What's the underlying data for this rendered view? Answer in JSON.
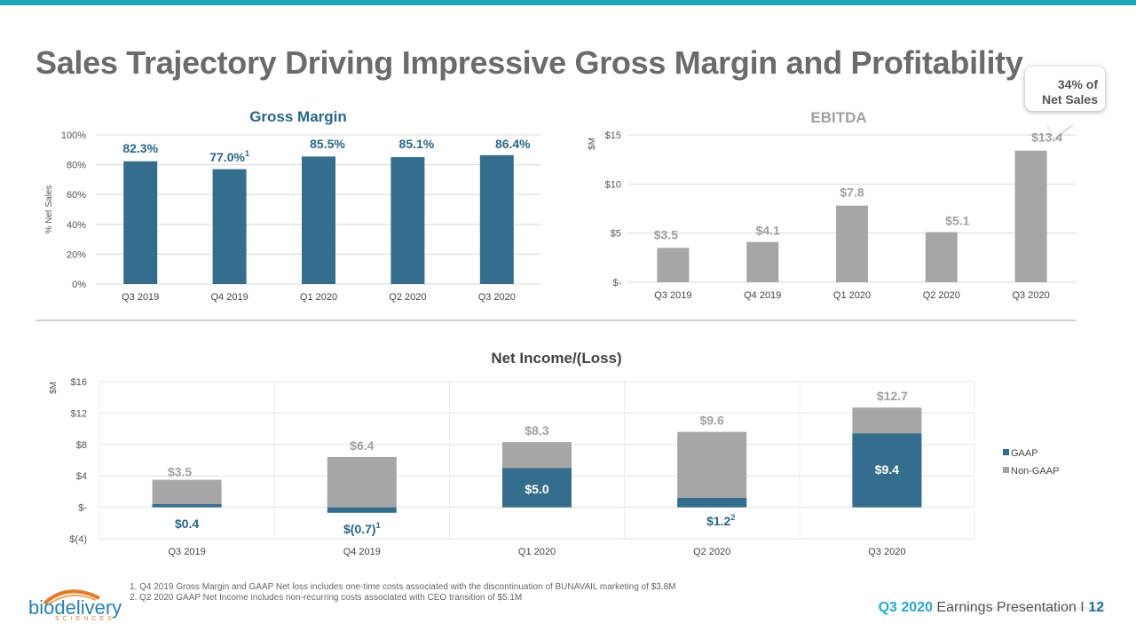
{
  "title": "Sales Trajectory Driving Impressive Gross Margin and Profitability",
  "callout": {
    "line1": "34% of",
    "line2": "Net Sales"
  },
  "colors": {
    "gaap": "#356e8c",
    "nongaap": "#a6a6a6",
    "accent": "#20a8b8",
    "gm_label": "#2a6688",
    "ebitda_label": "#a0a0a0"
  },
  "chart_data": [
    {
      "type": "bar",
      "title": "Gross Margin",
      "ylabel": "% Net Sales",
      "categories": [
        "Q3 2019",
        "Q4 2019",
        "Q1 2020",
        "Q2 2020",
        "Q3 2020"
      ],
      "values": [
        82.3,
        77.0,
        85.5,
        85.1,
        86.4
      ],
      "labels": [
        "82.3%",
        "77.0%",
        "85.5%",
        "85.1%",
        "86.4%"
      ],
      "label_superscripts": [
        "",
        "1",
        "",
        "",
        ""
      ],
      "yticks": [
        "0%",
        "20%",
        "40%",
        "60%",
        "80%",
        "100%"
      ],
      "ylim": [
        0,
        100
      ],
      "grid": true
    },
    {
      "type": "bar",
      "title": "EBITDA",
      "ylabel": "$M",
      "categories": [
        "Q3 2019",
        "Q4 2019",
        "Q1 2020",
        "Q2 2020",
        "Q3 2020"
      ],
      "values": [
        3.5,
        4.1,
        7.8,
        5.1,
        13.4
      ],
      "labels": [
        "$3.5",
        "$4.1",
        "$7.8",
        "$5.1",
        "$13.4"
      ],
      "yticks": [
        "$-",
        "$5",
        "$10",
        "$15"
      ],
      "ylim": [
        0,
        15
      ],
      "grid": true
    },
    {
      "type": "bar",
      "title": "Net Income/(Loss)",
      "ylabel": "$M",
      "categories": [
        "Q3 2019",
        "Q4 2019",
        "Q1 2020",
        "Q2 2020",
        "Q3 2020"
      ],
      "series": [
        {
          "name": "GAAP",
          "values": [
            0.4,
            -0.7,
            5.0,
            1.2,
            9.4
          ]
        },
        {
          "name": "Non-GAAP",
          "values": [
            3.5,
            6.4,
            8.3,
            9.6,
            12.7
          ]
        }
      ],
      "gaap_labels": [
        "$0.4",
        "$(0.7)",
        "$5.0",
        "$1.2",
        "$9.4"
      ],
      "gaap_superscripts": [
        "",
        "1",
        "",
        "2",
        ""
      ],
      "nongaap_labels": [
        "$3.5",
        "$6.4",
        "$8.3",
        "$9.6",
        "$12.7"
      ],
      "yticks": [
        "$(4)",
        "$-",
        "$4",
        "$8",
        "$12",
        "$16"
      ],
      "ylim": [
        -4,
        16
      ],
      "legend_position": "right",
      "grid": true
    }
  ],
  "footnotes": [
    "1. Q4 2019 Gross Margin and GAAP Net loss includes one-time costs associated with the discontinuation of BUNAVAIL marketing of $3.8M",
    "2. Q2 2020 GAAP Net Income includes non-recurring costs associated with CEO transition of $5.1M"
  ],
  "logo": {
    "word": "biodelivery",
    "sub": "SCIENCES"
  },
  "footer": {
    "quarter": "Q3 2020",
    "text": " Earnings Presentation  I  ",
    "page": "12"
  }
}
